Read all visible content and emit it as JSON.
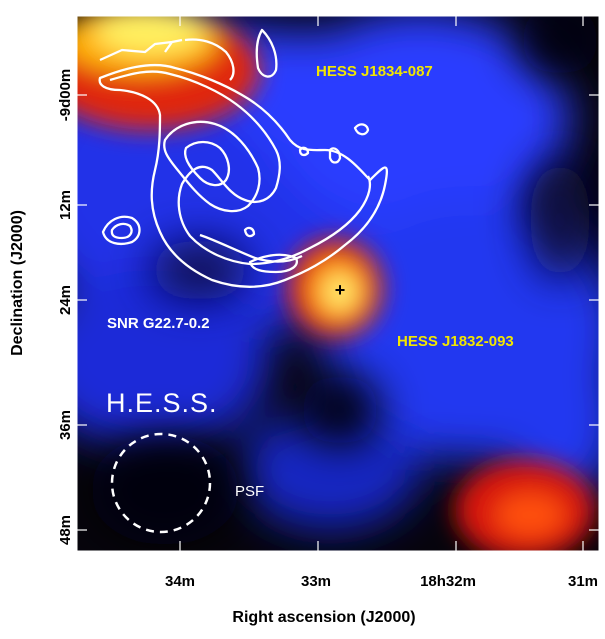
{
  "figure": {
    "xlabel": "Right ascension (J2000)",
    "ylabel": "Declination (J2000)",
    "xticks": [
      "34m",
      "33m",
      "18h32m",
      "31m"
    ],
    "yticks": [
      "-9d00m",
      "12m",
      "24m",
      "36m",
      "48m"
    ],
    "sources": [
      {
        "label": "HESS J1834-087",
        "color": "#f2e600"
      },
      {
        "label": "HESS J1832-093",
        "color": "#f2e600"
      },
      {
        "label": "SNR G22.7-0.2",
        "color": "#ffffff"
      }
    ],
    "instrument": "H.E.S.S.",
    "psf_label": "PSF",
    "marker": "+",
    "colors": {
      "background_dark": "#0a0612",
      "blue": "#2a3cff",
      "red": "#e01a10",
      "yellow": "#ffe000",
      "contour": "#ffffff"
    }
  }
}
